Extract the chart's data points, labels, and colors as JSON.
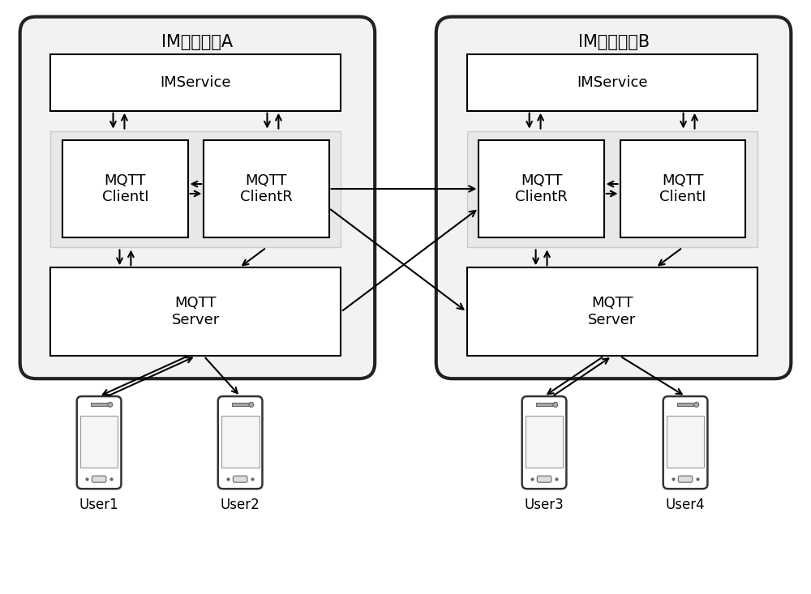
{
  "bg_color": "#ffffff",
  "fig_width": 10.0,
  "fig_height": 7.33,
  "gA_label": "IM接入网关A",
  "gB_label": "IM接入网关B",
  "user_labels": [
    "User1",
    "User2",
    "User3",
    "User4"
  ],
  "font_size_title": 15,
  "font_size_box": 13,
  "font_size_user": 12
}
